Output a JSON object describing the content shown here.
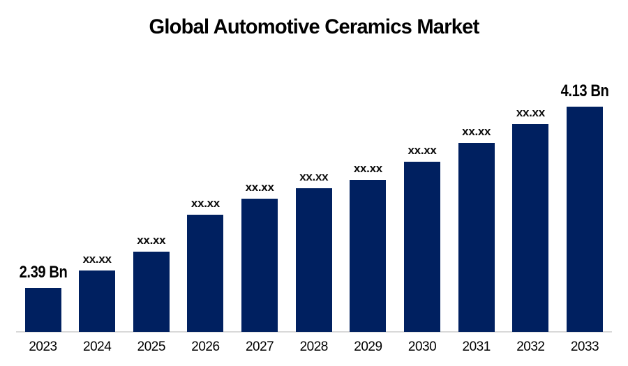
{
  "title": "Global Automotive Ceramics Market",
  "chart_data": {
    "type": "bar",
    "title": "Global Automotive Ceramics Market",
    "xlabel": "",
    "ylabel": "",
    "categories": [
      "2023",
      "2024",
      "2025",
      "2026",
      "2027",
      "2028",
      "2029",
      "2030",
      "2031",
      "2032",
      "2033"
    ],
    "values_bn_approx": [
      2.39,
      2.56,
      2.74,
      3.09,
      3.25,
      3.35,
      3.43,
      3.6,
      3.78,
      3.96,
      4.13
    ],
    "value_labels": [
      "2.39 Bn",
      "xx.xx",
      "xx.xx",
      "xx.xx",
      "xx.xx",
      "xx.xx",
      "xx.xx",
      "xx.xx",
      "xx.xx",
      "xx.xx",
      "4.13 Bn"
    ],
    "known_values": {
      "2023": "2.39 Bn",
      "2033": "4.13 Bn"
    },
    "unit": "Bn",
    "bar_color": "#002060",
    "axis_line_color": "#d9d9d9",
    "grid": false,
    "legend_position": "none"
  }
}
